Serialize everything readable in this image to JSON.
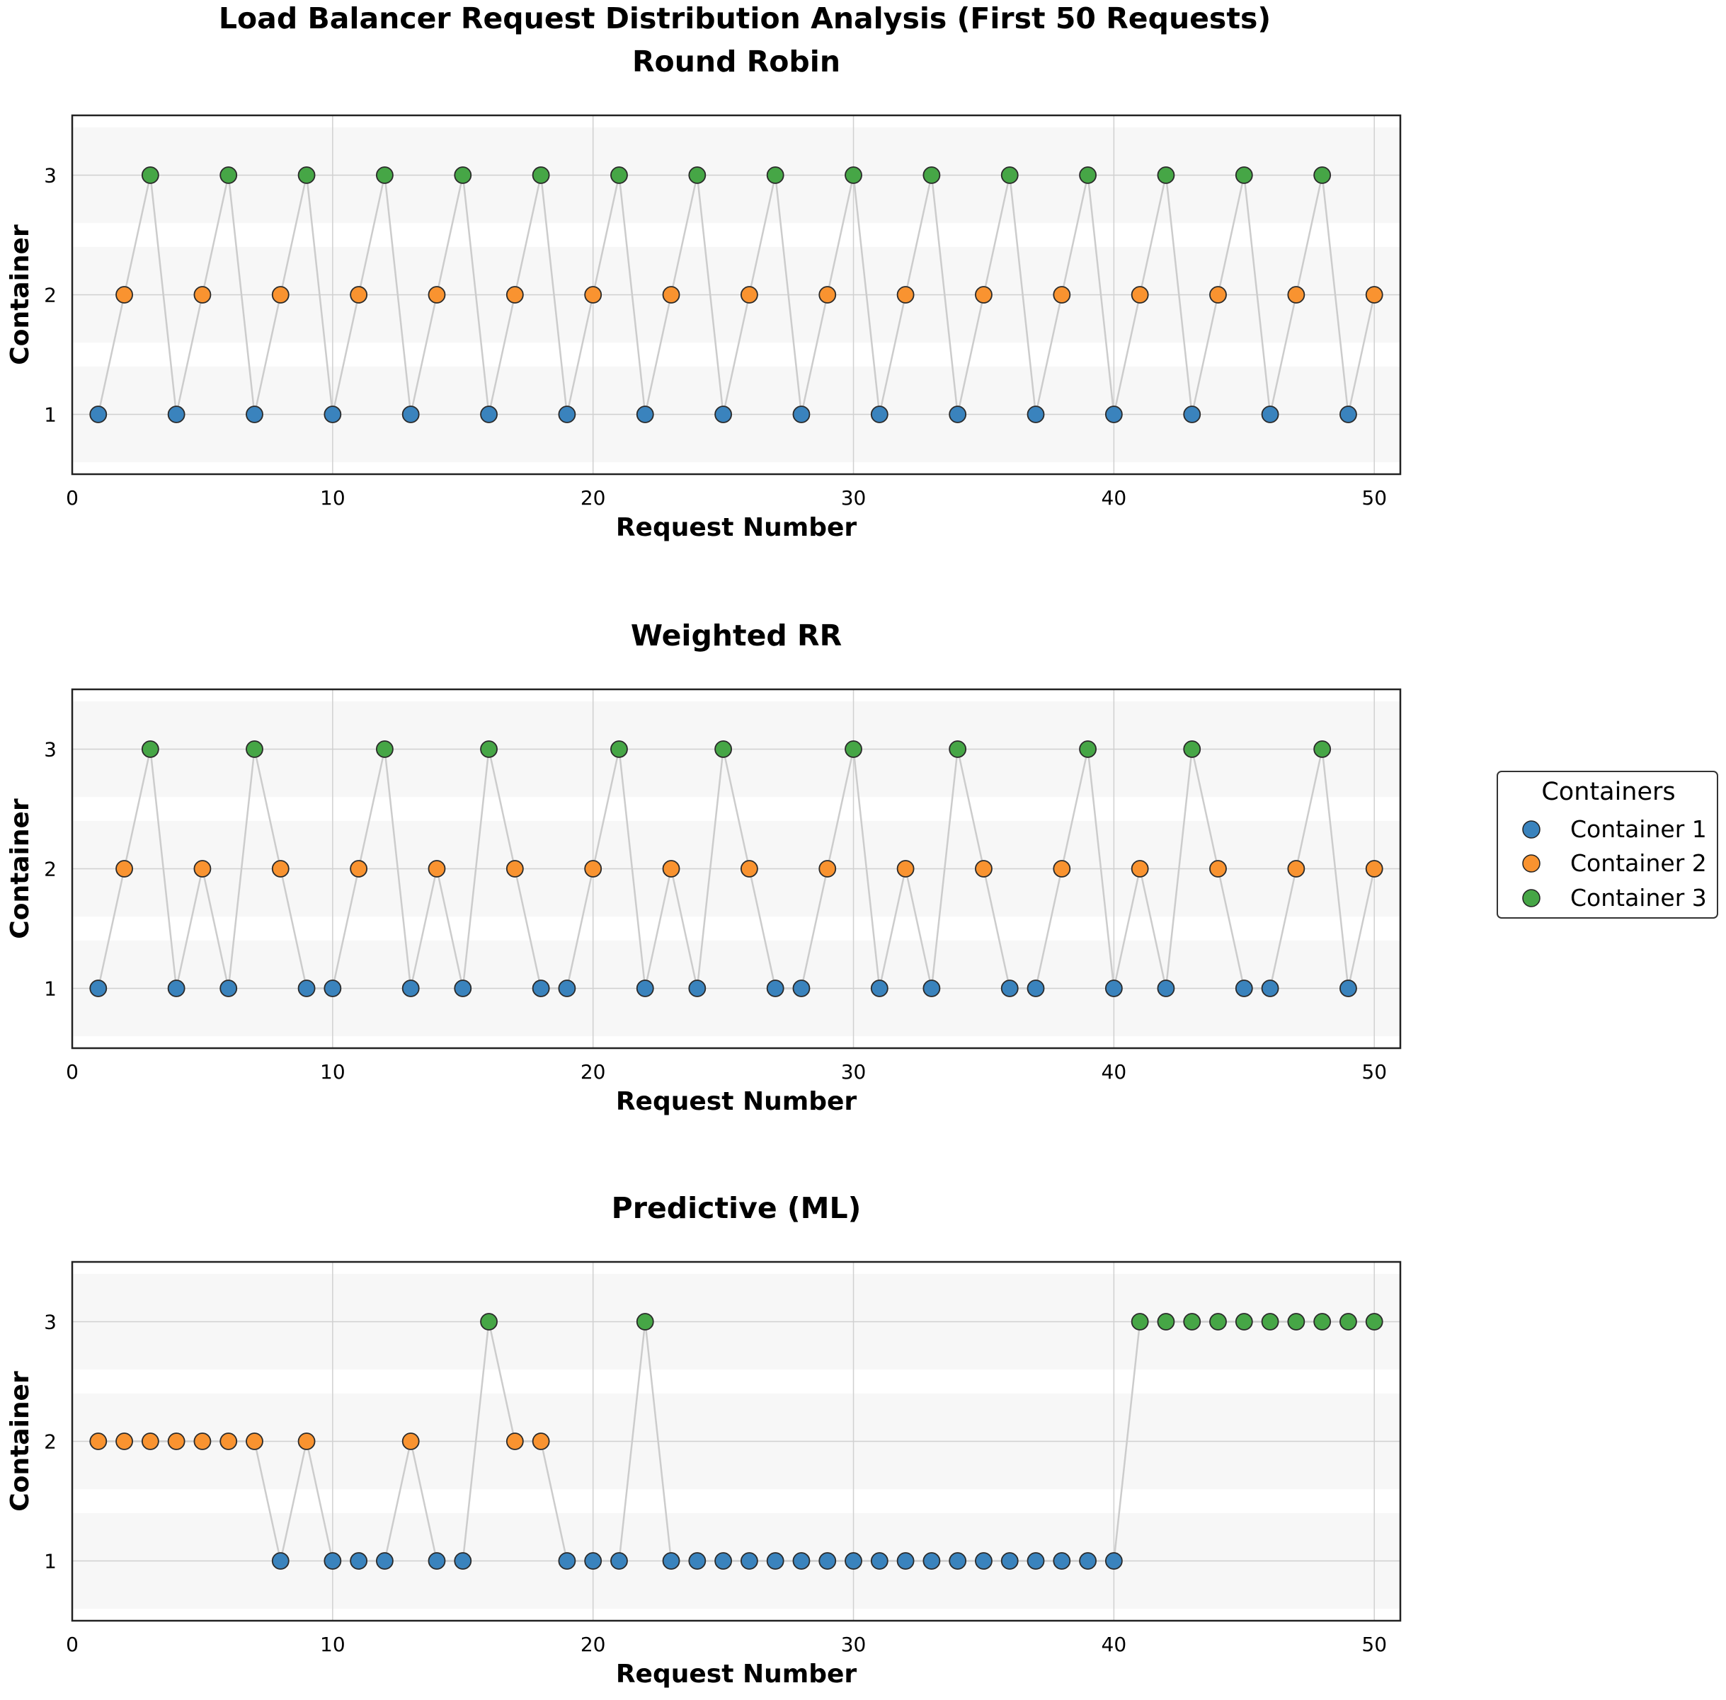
{
  "figure_title": "Load Balancer Request Distribution Analysis (First 50 Requests)",
  "colors": {
    "container_1": "#3a83bd",
    "container_2": "#f99330",
    "container_3": "#46a646",
    "line": "#cccccc",
    "grid": "#d0d0d0",
    "band": "#f7f7f7"
  },
  "legend": {
    "title": "Containers",
    "items": [
      {
        "label": "Container 1",
        "container": 1
      },
      {
        "label": "Container 2",
        "container": 2
      },
      {
        "label": "Container 3",
        "container": 3
      }
    ]
  },
  "chart_data": [
    {
      "type": "line",
      "title": "Round Robin",
      "xlabel": "Request Number",
      "ylabel": "Container",
      "xlim": [
        0,
        51
      ],
      "ylim": [
        0.5,
        3.5
      ],
      "xticks": [
        0,
        10,
        20,
        30,
        40,
        50
      ],
      "yticks": [
        1,
        2,
        3
      ],
      "x": [
        1,
        2,
        3,
        4,
        5,
        6,
        7,
        8,
        9,
        10,
        11,
        12,
        13,
        14,
        15,
        16,
        17,
        18,
        19,
        20,
        21,
        22,
        23,
        24,
        25,
        26,
        27,
        28,
        29,
        30,
        31,
        32,
        33,
        34,
        35,
        36,
        37,
        38,
        39,
        40,
        41,
        42,
        43,
        44,
        45,
        46,
        47,
        48,
        49,
        50
      ],
      "values": [
        1,
        2,
        3,
        1,
        2,
        3,
        1,
        2,
        3,
        1,
        2,
        3,
        1,
        2,
        3,
        1,
        2,
        3,
        1,
        2,
        3,
        1,
        2,
        3,
        1,
        2,
        3,
        1,
        2,
        3,
        1,
        2,
        3,
        1,
        2,
        3,
        1,
        2,
        3,
        1,
        2,
        3,
        1,
        2,
        3,
        1,
        2,
        3,
        1,
        2
      ]
    },
    {
      "type": "line",
      "title": "Weighted RR",
      "xlabel": "Request Number",
      "ylabel": "Container",
      "xlim": [
        0,
        51
      ],
      "ylim": [
        0.5,
        3.5
      ],
      "xticks": [
        0,
        10,
        20,
        30,
        40,
        50
      ],
      "yticks": [
        1,
        2,
        3
      ],
      "x": [
        1,
        2,
        3,
        4,
        5,
        6,
        7,
        8,
        9,
        10,
        11,
        12,
        13,
        14,
        15,
        16,
        17,
        18,
        19,
        20,
        21,
        22,
        23,
        24,
        25,
        26,
        27,
        28,
        29,
        30,
        31,
        32,
        33,
        34,
        35,
        36,
        37,
        38,
        39,
        40,
        41,
        42,
        43,
        44,
        45,
        46,
        47,
        48,
        49,
        50
      ],
      "values": [
        1,
        2,
        3,
        1,
        2,
        1,
        3,
        2,
        1,
        1,
        2,
        3,
        1,
        2,
        1,
        3,
        2,
        1,
        1,
        2,
        3,
        1,
        2,
        1,
        3,
        2,
        1,
        1,
        2,
        3,
        1,
        2,
        1,
        3,
        2,
        1,
        1,
        2,
        3,
        1,
        2,
        1,
        3,
        2,
        1,
        1,
        2,
        3,
        1,
        2
      ]
    },
    {
      "type": "line",
      "title": "Predictive (ML)",
      "xlabel": "Request Number",
      "ylabel": "Container",
      "xlim": [
        0,
        51
      ],
      "ylim": [
        0.5,
        3.5
      ],
      "xticks": [
        0,
        10,
        20,
        30,
        40,
        50
      ],
      "yticks": [
        1,
        2,
        3
      ],
      "x": [
        1,
        2,
        3,
        4,
        5,
        6,
        7,
        8,
        9,
        10,
        11,
        12,
        13,
        14,
        15,
        16,
        17,
        18,
        19,
        20,
        21,
        22,
        23,
        24,
        25,
        26,
        27,
        28,
        29,
        30,
        31,
        32,
        33,
        34,
        35,
        36,
        37,
        38,
        39,
        40,
        41,
        42,
        43,
        44,
        45,
        46,
        47,
        48,
        49,
        50
      ],
      "values": [
        2,
        2,
        2,
        2,
        2,
        2,
        2,
        1,
        2,
        1,
        1,
        1,
        2,
        1,
        1,
        3,
        2,
        2,
        1,
        1,
        1,
        3,
        1,
        1,
        1,
        1,
        1,
        1,
        1,
        1,
        1,
        1,
        1,
        1,
        1,
        1,
        1,
        1,
        1,
        1,
        3,
        3,
        3,
        3,
        3,
        3,
        3,
        3,
        3,
        3
      ]
    }
  ]
}
